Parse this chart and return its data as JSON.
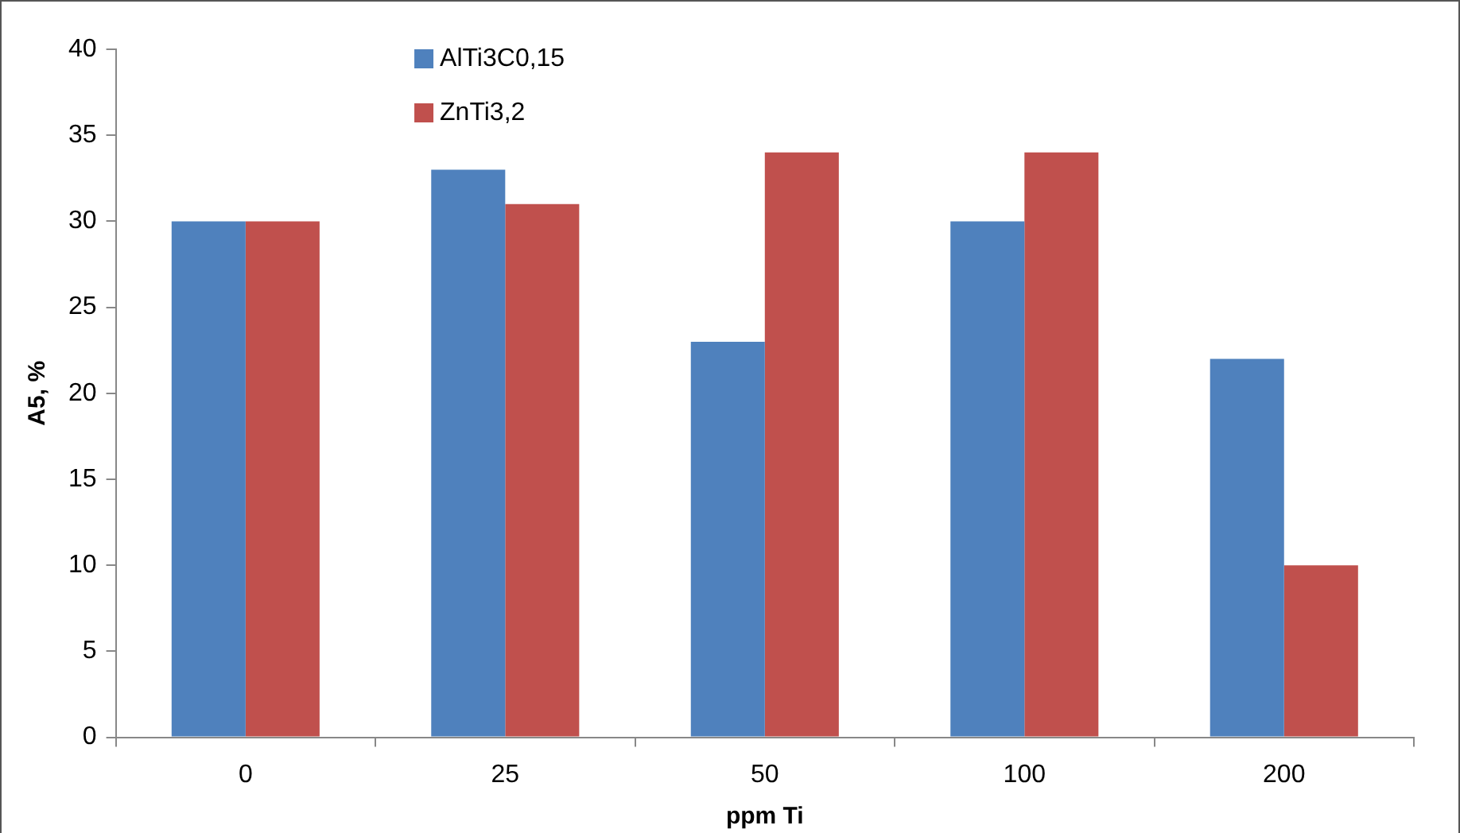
{
  "chart_data": {
    "type": "bar",
    "xlabel": "ppm Ti",
    "ylabel": "A5, %",
    "categories": [
      "0",
      "25",
      "50",
      "100",
      "200"
    ],
    "series": [
      {
        "name": "AlTi3C0,15",
        "color": "#4f81bd",
        "values": [
          30,
          33,
          23,
          30,
          22
        ]
      },
      {
        "name": "ZnTi3,2",
        "color": "#c0504d",
        "values": [
          30,
          31,
          34,
          34,
          10
        ]
      }
    ],
    "ylim": [
      0,
      40
    ],
    "yticks": [
      0,
      5,
      10,
      15,
      20,
      25,
      30,
      35,
      40
    ],
    "grid": false,
    "legend": "top left"
  }
}
